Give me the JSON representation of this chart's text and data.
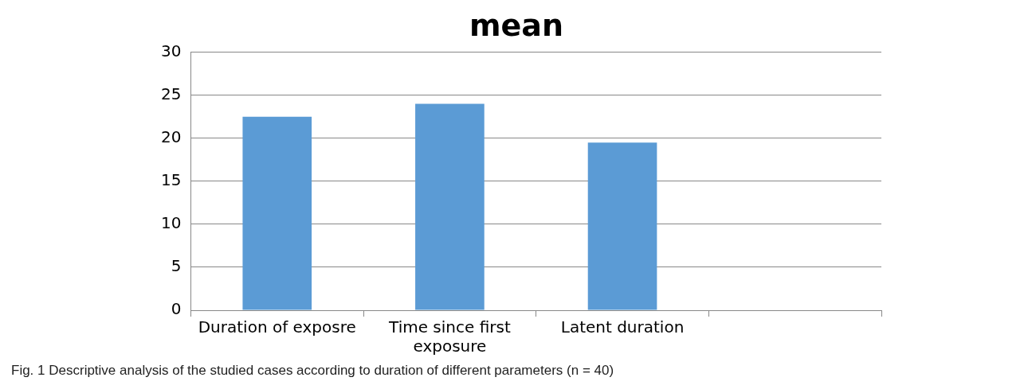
{
  "chart_data": {
    "type": "bar",
    "title": "mean",
    "categories": [
      "Duration of exposre",
      "Time since first exposure",
      "Latent duration",
      null
    ],
    "values": [
      22.5,
      24,
      19.5,
      null
    ],
    "color": "#5b9bd5",
    "ylim": [
      0,
      30
    ],
    "yticks": [
      0,
      5,
      10,
      15,
      20,
      25,
      30
    ],
    "grid": "y",
    "legend": false,
    "annotations": [
      "Fig. 1 Descriptive analysis of the studied cases according to duration of different parameters (n = 40)"
    ]
  }
}
